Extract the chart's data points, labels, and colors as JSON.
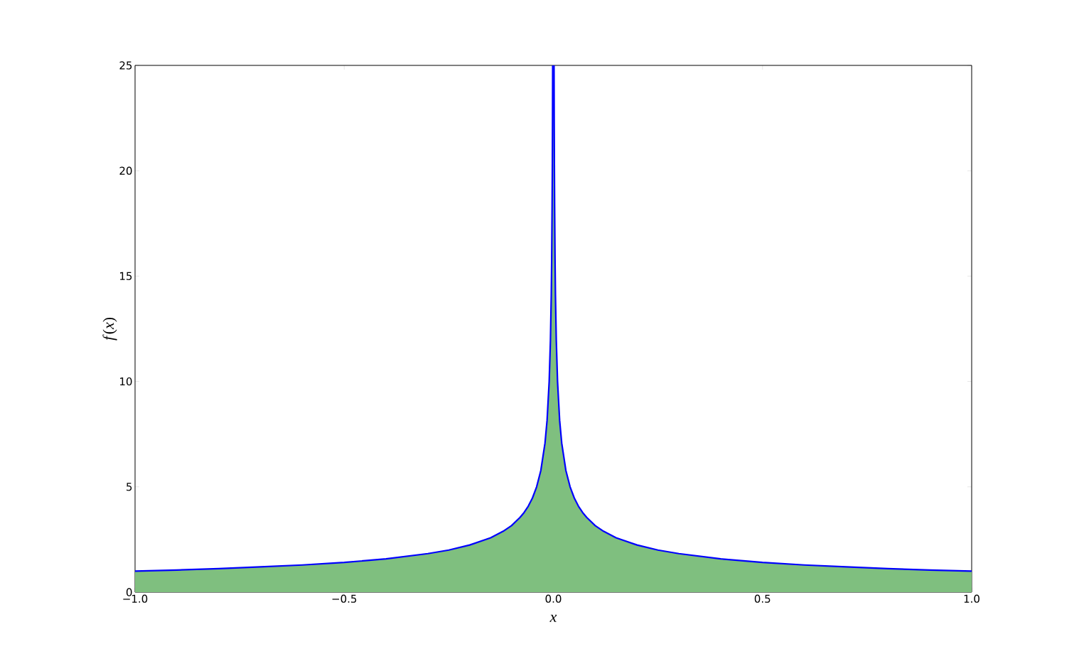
{
  "chart_data": {
    "type": "area",
    "xlabel": "x",
    "ylabel": "*f*(*x*)",
    "series": [
      {
        "color": "#7fbf7f",
        "x": [
          -1,
          -0.9,
          -0.8,
          -0.7,
          -0.6,
          -0.5,
          -0.4,
          -0.3,
          -0.25,
          -0.2,
          -0.15,
          -0.12,
          -0.1,
          -0.08,
          -0.07,
          -0.06,
          -0.05,
          -0.04,
          -0.03,
          -0.02,
          -0.015,
          -0.01,
          -0.007,
          -0.005,
          -0.004,
          -0.003,
          -0.0025,
          -0.002,
          -0.0016,
          0.0016,
          0.002,
          0.0025,
          0.003,
          0.004,
          0.005,
          0.007,
          0.01,
          0.015,
          0.02,
          0.03,
          0.04,
          0.05,
          0.06,
          0.07,
          0.08,
          0.1,
          0.12,
          0.15,
          0.2,
          0.25,
          0.3,
          0.4,
          0.5,
          0.6,
          0.7,
          0.8,
          0.9,
          1
        ],
        "values": [
          1.0,
          1.05,
          1.12,
          1.2,
          1.29,
          1.41,
          1.58,
          1.83,
          2.0,
          2.24,
          2.58,
          2.89,
          3.16,
          3.54,
          3.78,
          4.08,
          4.47,
          5.0,
          5.77,
          7.07,
          8.16,
          10.0,
          11.95,
          14.1,
          15.8,
          18.3,
          20.0,
          22.4,
          25,
          25,
          22.4,
          20.0,
          18.3,
          15.8,
          14.1,
          11.95,
          10.0,
          8.16,
          7.07,
          5.77,
          5.0,
          4.47,
          4.08,
          3.78,
          3.54,
          3.16,
          2.89,
          2.58,
          2.24,
          2.0,
          1.83,
          1.58,
          1.41,
          1.29,
          1.2,
          1.12,
          1.05,
          1.0
        ]
      },
      {
        "type": "line",
        "color": "#0000ff",
        "x": [
          -1,
          -0.9,
          -0.8,
          -0.7,
          -0.6,
          -0.5,
          -0.4,
          -0.3,
          -0.25,
          -0.2,
          -0.15,
          -0.12,
          -0.1,
          -0.08,
          -0.07,
          -0.06,
          -0.05,
          -0.04,
          -0.03,
          -0.02,
          -0.015,
          -0.01,
          -0.007,
          -0.005,
          -0.004,
          -0.003,
          -0.0025,
          -0.002,
          -0.0016,
          0.0016,
          0.002,
          0.0025,
          0.003,
          0.004,
          0.005,
          0.007,
          0.01,
          0.015,
          0.02,
          0.03,
          0.04,
          0.05,
          0.06,
          0.07,
          0.08,
          0.1,
          0.12,
          0.15,
          0.2,
          0.25,
          0.3,
          0.4,
          0.5,
          0.6,
          0.7,
          0.8,
          0.9,
          1
        ],
        "values": [
          1.0,
          1.05,
          1.12,
          1.2,
          1.29,
          1.41,
          1.58,
          1.83,
          2.0,
          2.24,
          2.58,
          2.89,
          3.16,
          3.54,
          3.78,
          4.08,
          4.47,
          5.0,
          5.77,
          7.07,
          8.16,
          10.0,
          11.95,
          14.1,
          15.8,
          18.3,
          20.0,
          22.4,
          25,
          25,
          22.4,
          20.0,
          18.3,
          15.8,
          14.1,
          11.95,
          10.0,
          8.16,
          7.07,
          5.77,
          5.0,
          4.47,
          4.08,
          3.78,
          3.54,
          3.16,
          2.89,
          2.58,
          2.24,
          2.0,
          1.83,
          1.58,
          1.41,
          1.29,
          1.2,
          1.12,
          1.05,
          1.0
        ]
      }
    ],
    "xlim": [
      -1,
      1
    ],
    "ylim": [
      0,
      25
    ],
    "xticks": [
      {
        "value": -1,
        "label": "−1.0"
      },
      {
        "value": -0.5,
        "label": "−0.5"
      },
      {
        "value": 0,
        "label": "0.0"
      },
      {
        "value": 0.5,
        "label": "0.5"
      },
      {
        "value": 1,
        "label": "1.0"
      }
    ],
    "yticks": [
      0,
      5,
      10,
      15,
      20,
      25
    ]
  }
}
